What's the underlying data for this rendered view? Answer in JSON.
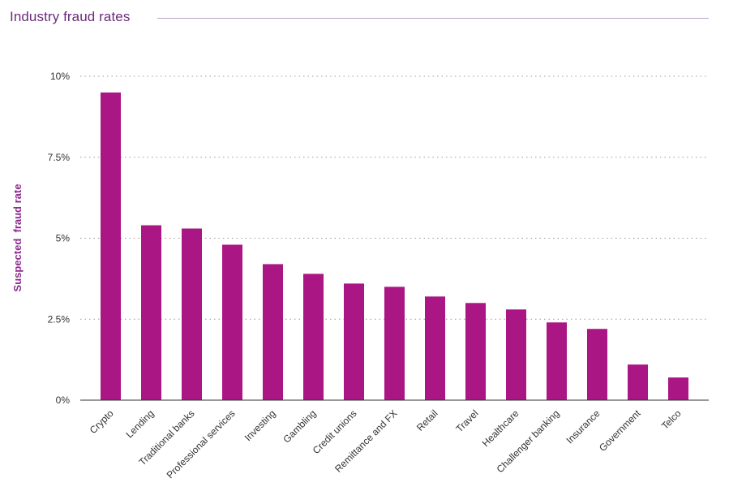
{
  "title": "Industry fraud rates",
  "colors": {
    "bar": "#ab1685",
    "title": "#6b2a7a",
    "ylabel": "#8b2a8e",
    "grid": "#999999",
    "axis": "#333333"
  },
  "chart_data": {
    "type": "bar",
    "title": "Industry fraud rates",
    "xlabel": "",
    "ylabel": "Suspected  fraud rate",
    "ylim": [
      0,
      10
    ],
    "yticks": [
      {
        "value": 0,
        "label": "0%"
      },
      {
        "value": 2.5,
        "label": "2.5%"
      },
      {
        "value": 5,
        "label": "5%"
      },
      {
        "value": 7.5,
        "label": "7.5%"
      },
      {
        "value": 10,
        "label": "10%"
      }
    ],
    "grid": true,
    "categories": [
      "Crypto",
      "Lending",
      "Traditional banks",
      "Professional services",
      "Investing",
      "Gambling",
      "Credit unions",
      "Remittance and FX",
      "Retail",
      "Travel",
      "Healthcare",
      "Challenger banking",
      "Insurance",
      "Government",
      "Telco"
    ],
    "values": [
      9.5,
      5.4,
      5.3,
      4.8,
      4.2,
      3.9,
      3.6,
      3.5,
      3.2,
      3.0,
      2.8,
      2.4,
      2.2,
      1.1,
      0.7
    ]
  }
}
